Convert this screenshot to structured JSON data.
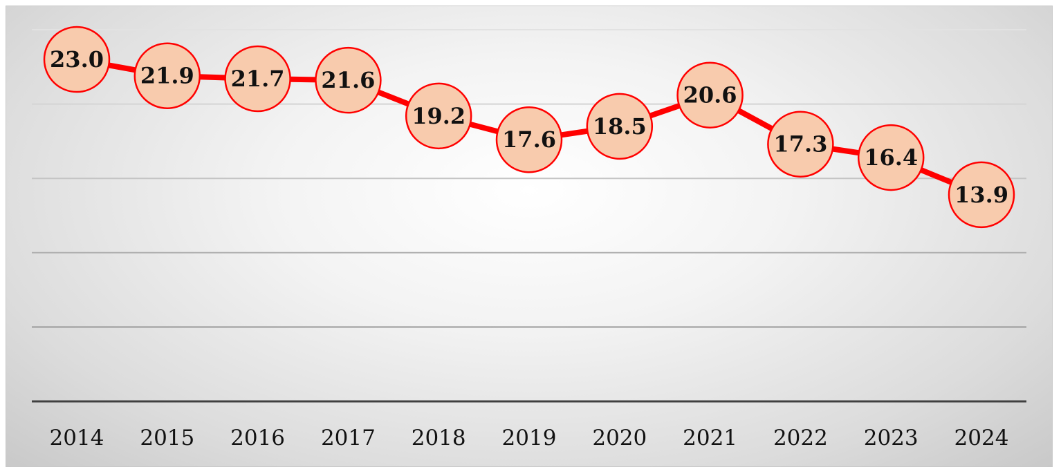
{
  "chart_data": {
    "type": "line",
    "title": "",
    "xlabel": "",
    "ylabel": "",
    "categories": [
      "2014",
      "2015",
      "2016",
      "2017",
      "2018",
      "2019",
      "2020",
      "2021",
      "2022",
      "2023",
      "2024"
    ],
    "series": [
      {
        "values": [
          23.0,
          21.9,
          21.7,
          21.6,
          19.2,
          17.6,
          18.5,
          20.6,
          17.3,
          16.4,
          13.9
        ]
      }
    ],
    "data_labels": [
      "23.0",
      "21.9",
      "21.7",
      "21.6",
      "19.2",
      "17.6",
      "18.5",
      "20.6",
      "17.3",
      "16.4",
      "13.9"
    ],
    "ylim": [
      0,
      25
    ],
    "y_gridlines": [
      5,
      10,
      15,
      20,
      25
    ],
    "grid": true,
    "legend": "none",
    "colors": {
      "line": "#ff0000",
      "marker_fill": "#f8cbad",
      "marker_stroke": "#ff0000",
      "axis": "#404040"
    }
  }
}
